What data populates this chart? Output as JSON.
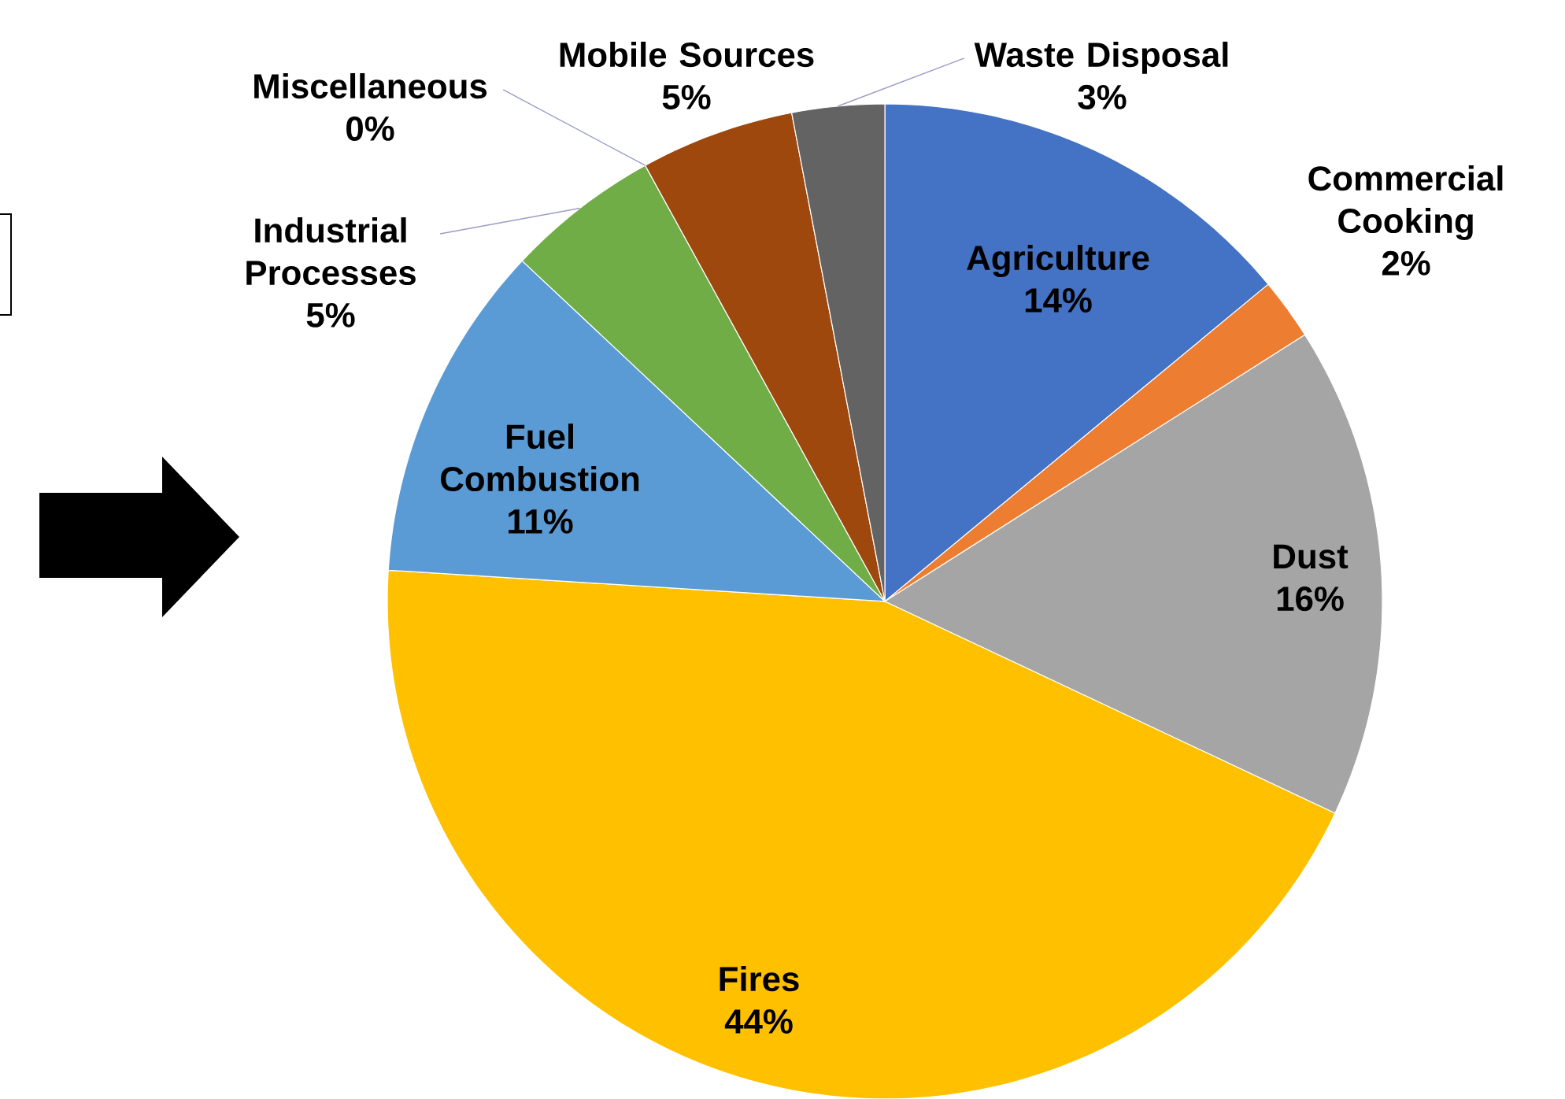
{
  "chart_data": {
    "type": "pie",
    "categories": [
      "Agriculture",
      "Commercial Cooking",
      "Dust",
      "Fires",
      "Fuel Combustion",
      "Industrial Processes",
      "Miscellaneous",
      "Mobile Sources",
      "Waste Disposal"
    ],
    "values": [
      14,
      2,
      16,
      44,
      11,
      5,
      0,
      5,
      3
    ],
    "value_labels": [
      "14%",
      "2%",
      "16%",
      "44%",
      "11%",
      "5%",
      "0%",
      "5%",
      "3%"
    ],
    "colors": [
      "#4472c4",
      "#ed7d31",
      "#a5a5a5",
      "#ffc000",
      "#5b9bd5",
      "#70ad47",
      "#264478",
      "#9e480e",
      "#636363"
    ]
  }
}
